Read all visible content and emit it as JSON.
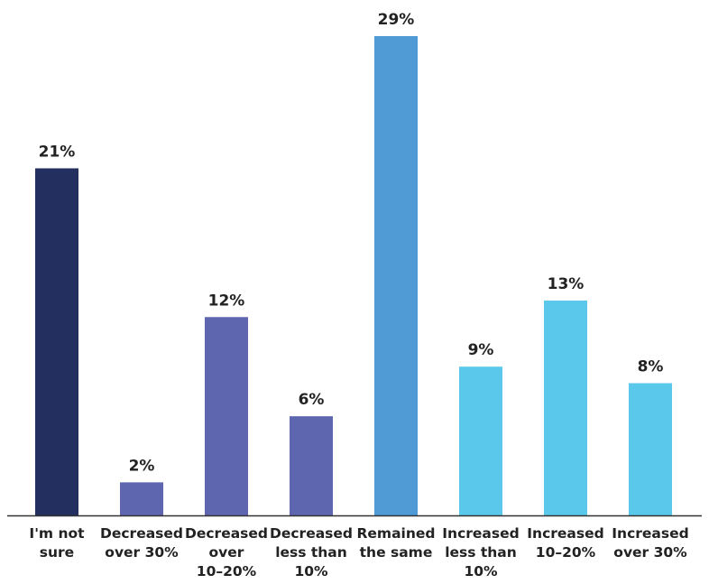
{
  "chart_data": {
    "type": "bar",
    "title": "",
    "xlabel": "",
    "ylabel": "",
    "ylim": [
      0,
      29
    ],
    "grid": false,
    "legend": "none",
    "categories": [
      [
        "I'm not",
        "sure"
      ],
      [
        "Decreased",
        "over 30%"
      ],
      [
        "Decreased",
        "over",
        "10–20%"
      ],
      [
        "Decreased",
        "less than",
        "10%"
      ],
      [
        "Remained",
        "the same"
      ],
      [
        "Increased",
        "less than",
        "10%"
      ],
      [
        "Increased",
        "10–20%"
      ],
      [
        "Increased",
        "over 30%"
      ]
    ],
    "values": [
      21,
      2,
      12,
      6,
      29,
      9,
      13,
      8
    ],
    "value_labels": [
      "21%",
      "2%",
      "12%",
      "6%",
      "29%",
      "9%",
      "13%",
      "8%"
    ],
    "bar_colors": [
      "#222f5f",
      "#5e66b0",
      "#5e66b0",
      "#5e66b0",
      "#509ad6",
      "#59c8ea",
      "#59c8ea",
      "#59c8ea"
    ],
    "axis_color": "#333333"
  }
}
